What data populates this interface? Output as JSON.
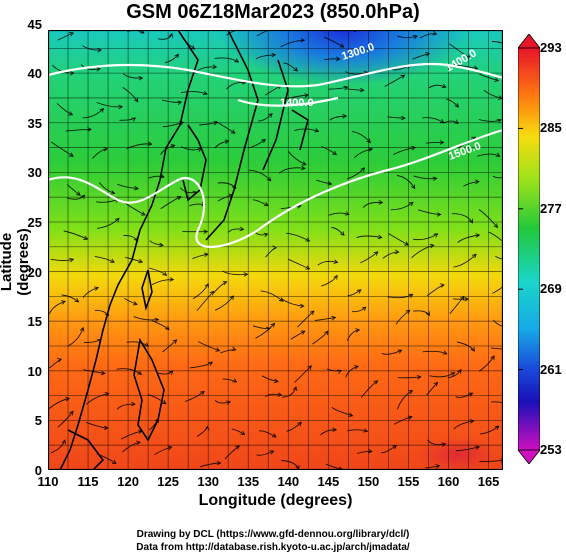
{
  "title": "GSM 06Z18Mar2023 (850.0hPa)",
  "x_axis": {
    "label": "Longitude (degrees)",
    "ticks": [
      "110",
      "115",
      "120",
      "125",
      "130",
      "135",
      "140",
      "145",
      "150",
      "155",
      "160",
      "165"
    ]
  },
  "y_axis": {
    "label": "Latitude  (degrees)",
    "ticks": [
      "0",
      "5",
      "10",
      "15",
      "20",
      "25",
      "30",
      "35",
      "40",
      "45"
    ]
  },
  "colorbar": {
    "labels": [
      "293",
      "285",
      "277",
      "269",
      "261",
      "253"
    ]
  },
  "contour_labels": [
    "1300.0",
    "1400.0",
    "1500.0",
    "1400.0"
  ],
  "credits": {
    "line1": "Drawing by DCL (https://www.gfd-dennou.org/library/dcl/)",
    "line2": "Data from http://database.rish.kyoto-u.ac.jp/arch/jmadata/"
  }
}
